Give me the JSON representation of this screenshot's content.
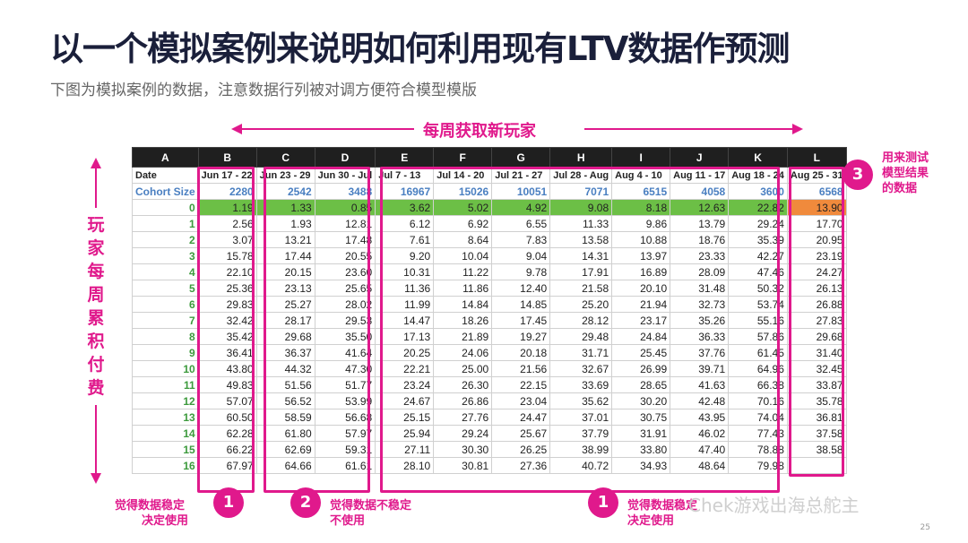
{
  "title": "以一个模拟案例来说明如何利用现有LTV数据作预测",
  "subtitle": "下图为模拟案例的数据，注意数据行列被对调方便符合模型模版",
  "top_label": "每周获取新玩家",
  "side_label": [
    "玩",
    "家",
    "每",
    "周",
    "累",
    "积",
    "付",
    "费"
  ],
  "columns": [
    "A",
    "B",
    "C",
    "D",
    "E",
    "F",
    "G",
    "H",
    "I",
    "J",
    "K",
    "L"
  ],
  "date_row_label": "Date",
  "dates": [
    "Jun 17 - 22",
    "Jun 23 - 29",
    "Jun 30 - Jul",
    "Jul 7 - 13",
    "Jul 14 - 20",
    "Jul 21 - 27",
    "Jul 28 - Aug",
    "Aug 4 - 10",
    "Aug 11 - 17",
    "Aug 18 - 24",
    "Aug 25 - 31"
  ],
  "cohort_label": "Cohort Size",
  "cohort_sizes": [
    "2280",
    "2542",
    "3488",
    "16967",
    "15026",
    "10051",
    "7071",
    "6515",
    "4058",
    "3600",
    "6568"
  ],
  "rows": [
    {
      "week": "0",
      "values": [
        "1.19",
        "1.33",
        "0.85",
        "3.62",
        "5.02",
        "4.92",
        "9.08",
        "8.18",
        "12.63",
        "22.82",
        "13.90"
      ]
    },
    {
      "week": "1",
      "values": [
        "2.56",
        "1.93",
        "12.81",
        "6.12",
        "6.92",
        "6.55",
        "11.33",
        "9.86",
        "13.79",
        "29.24",
        "17.70"
      ]
    },
    {
      "week": "2",
      "values": [
        "3.07",
        "13.21",
        "17.48",
        "7.61",
        "8.64",
        "7.83",
        "13.58",
        "10.88",
        "18.76",
        "35.39",
        "20.95"
      ]
    },
    {
      "week": "3",
      "values": [
        "15.78",
        "17.44",
        "20.55",
        "9.20",
        "10.04",
        "9.04",
        "14.31",
        "13.97",
        "23.33",
        "42.27",
        "23.19"
      ]
    },
    {
      "week": "4",
      "values": [
        "22.10",
        "20.15",
        "23.60",
        "10.31",
        "11.22",
        "9.78",
        "17.91",
        "16.89",
        "28.09",
        "47.46",
        "24.27"
      ]
    },
    {
      "week": "5",
      "values": [
        "25.36",
        "23.13",
        "25.65",
        "11.36",
        "11.86",
        "12.40",
        "21.58",
        "20.10",
        "31.48",
        "50.32",
        "26.13"
      ]
    },
    {
      "week": "6",
      "values": [
        "29.83",
        "25.27",
        "28.02",
        "11.99",
        "14.84",
        "14.85",
        "25.20",
        "21.94",
        "32.73",
        "53.74",
        "26.88"
      ]
    },
    {
      "week": "7",
      "values": [
        "32.42",
        "28.17",
        "29.53",
        "14.47",
        "18.26",
        "17.45",
        "28.12",
        "23.17",
        "35.26",
        "55.16",
        "27.83"
      ]
    },
    {
      "week": "8",
      "values": [
        "35.42",
        "29.68",
        "35.50",
        "17.13",
        "21.89",
        "19.27",
        "29.48",
        "24.84",
        "36.33",
        "57.86",
        "29.68"
      ]
    },
    {
      "week": "9",
      "values": [
        "36.41",
        "36.37",
        "41.64",
        "20.25",
        "24.06",
        "20.18",
        "31.71",
        "25.45",
        "37.76",
        "61.45",
        "31.40"
      ]
    },
    {
      "week": "10",
      "values": [
        "43.80",
        "44.32",
        "47.30",
        "22.21",
        "25.00",
        "21.56",
        "32.67",
        "26.99",
        "39.71",
        "64.96",
        "32.45"
      ]
    },
    {
      "week": "11",
      "values": [
        "49.83",
        "51.56",
        "51.77",
        "23.24",
        "26.30",
        "22.15",
        "33.69",
        "28.65",
        "41.63",
        "66.38",
        "33.87"
      ]
    },
    {
      "week": "12",
      "values": [
        "57.07",
        "56.52",
        "53.99",
        "24.67",
        "26.86",
        "23.04",
        "35.62",
        "30.20",
        "42.48",
        "70.16",
        "35.78"
      ]
    },
    {
      "week": "13",
      "values": [
        "60.50",
        "58.59",
        "56.68",
        "25.15",
        "27.76",
        "24.47",
        "37.01",
        "30.75",
        "43.95",
        "74.04",
        "36.81"
      ]
    },
    {
      "week": "14",
      "values": [
        "62.28",
        "61.80",
        "57.97",
        "25.94",
        "29.24",
        "25.67",
        "37.79",
        "31.91",
        "46.02",
        "77.43",
        "37.58"
      ]
    },
    {
      "week": "15",
      "values": [
        "66.22",
        "62.69",
        "59.31",
        "27.11",
        "30.30",
        "26.25",
        "38.99",
        "33.80",
        "47.40",
        "78.88",
        "38.58"
      ]
    },
    {
      "week": "16",
      "values": [
        "67.97",
        "64.66",
        "61.61",
        "28.10",
        "30.81",
        "27.36",
        "40.72",
        "34.93",
        "48.64",
        "79.98",
        ""
      ]
    }
  ],
  "annotations": {
    "badge1": "1",
    "badge2": "2",
    "badge3": "3",
    "note1_line1": "觉得数据稳定",
    "note1_line2": "决定使用",
    "note2_line1": "觉得数据不稳定",
    "note2_line2": "不使用",
    "note1b_line1": "觉得数据稳定",
    "note1b_line2": "决定使用",
    "note3_line1": "用来测试",
    "note3_line2": "模型结果",
    "note3_line3": "的数据"
  },
  "watermark": "Chek游戏出海总舵主",
  "page_number": "25",
  "colors": {
    "accent": "#e0198c",
    "green_cell": "#6cbf46",
    "orange_cell": "#f08a3c",
    "cohort_text": "#4a7fc1"
  }
}
